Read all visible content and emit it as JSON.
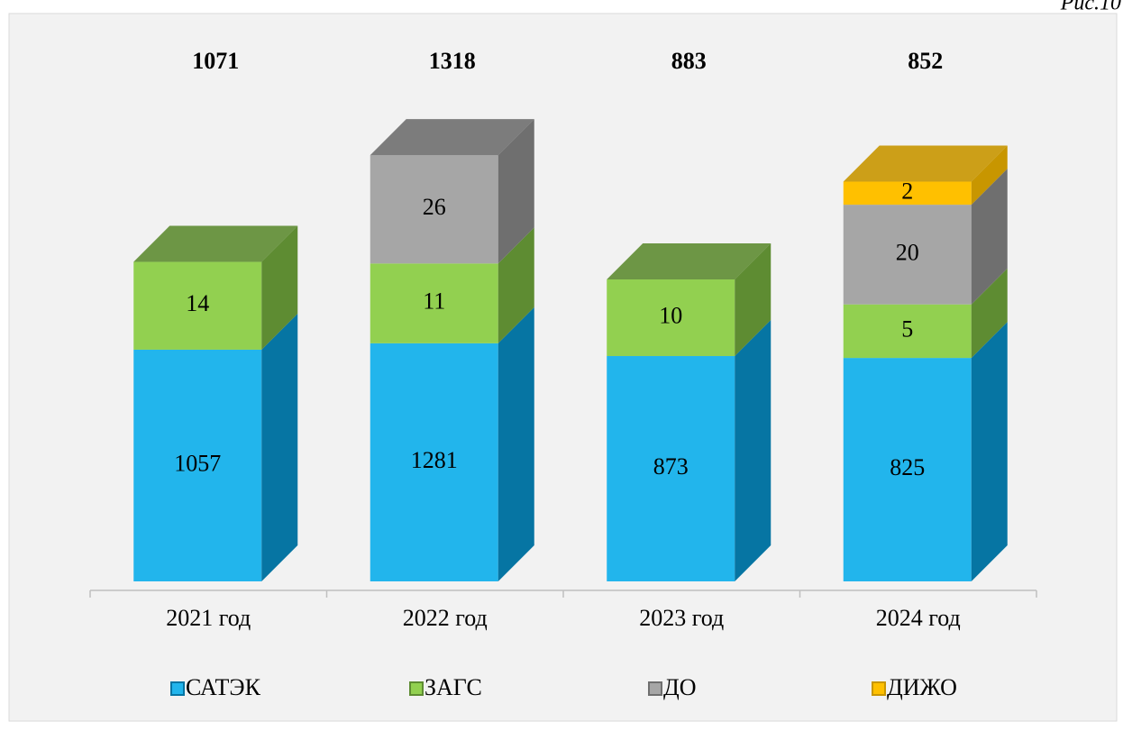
{
  "chart_data": {
    "type": "bar",
    "stacked": true,
    "log": true,
    "figure_label": "Рис.10",
    "categories": [
      "2021 год",
      "2022 год",
      "2023 год",
      "2024 год"
    ],
    "totals": [
      1071,
      1318,
      883,
      852
    ],
    "series": [
      {
        "name": "САТЭК",
        "color": "#22b5ec",
        "side_color": "#0675a3",
        "values": [
          1057,
          1281,
          873,
          825
        ]
      },
      {
        "name": "ЗАГС",
        "color": "#92d050",
        "side_color": "#5e8c32",
        "values": [
          14,
          11,
          10,
          5
        ]
      },
      {
        "name": "ДО",
        "color": "#a6a6a6",
        "side_color": "#6f6f6f",
        "values": [
          null,
          26,
          null,
          20
        ]
      },
      {
        "name": "ДИЖО",
        "color": "#ffc000",
        "side_color": "#c89600",
        "values": [
          null,
          null,
          null,
          2
        ]
      }
    ],
    "legend": "bottom"
  }
}
